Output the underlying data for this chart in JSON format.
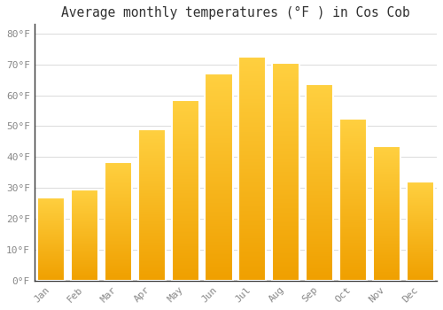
{
  "months": [
    "Jan",
    "Feb",
    "Mar",
    "Apr",
    "May",
    "Jun",
    "Jul",
    "Aug",
    "Sep",
    "Oct",
    "Nov",
    "Dec"
  ],
  "values": [
    27,
    29.5,
    38.5,
    49,
    58.5,
    67,
    72.5,
    70.5,
    63.5,
    52.5,
    43.5,
    32
  ],
  "bar_color_top": "#FFD040",
  "bar_color_bottom": "#F0A000",
  "bar_edge_color": "#FFFFFF",
  "title": "Average monthly temperatures (°F ) in Cos Cob",
  "ylim": [
    0,
    83
  ],
  "yticks": [
    0,
    10,
    20,
    30,
    40,
    50,
    60,
    70,
    80
  ],
  "ytick_labels": [
    "0°F",
    "10°F",
    "20°F",
    "30°F",
    "40°F",
    "50°F",
    "60°F",
    "70°F",
    "80°F"
  ],
  "grid_color": "#dddddd",
  "background_color": "#ffffff",
  "title_fontsize": 10.5,
  "tick_fontsize": 8,
  "bar_width": 0.82
}
